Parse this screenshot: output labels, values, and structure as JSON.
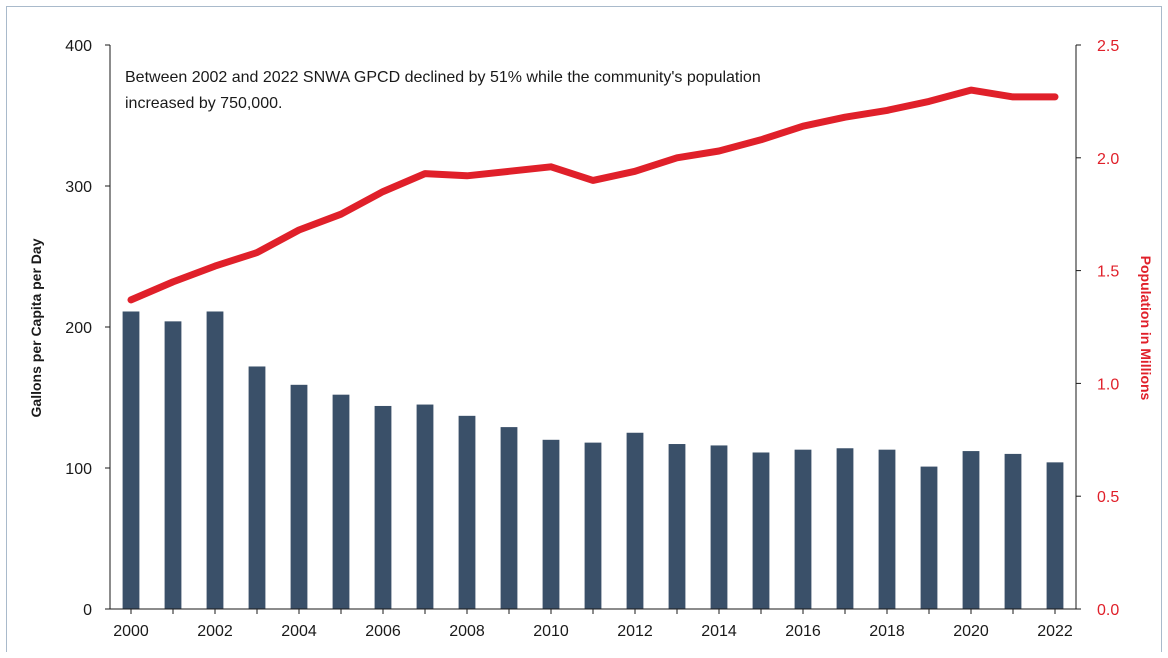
{
  "chart_data": {
    "type": "bar+line",
    "annotation": [
      "Between 2002 and 2022 SNWA GPCD declined by 51% while the community's population",
      "increased by 750,000."
    ],
    "ylabel_left": "Gallons per Capita per Day",
    "ylabel_right": "Population in Millions",
    "ylim_left": [
      0,
      400
    ],
    "ylim_right": [
      0,
      2.5
    ],
    "left_ticks": [
      "0",
      "100",
      "200",
      "300",
      "400"
    ],
    "right_ticks": [
      "0.0",
      "0.5",
      "1.0",
      "1.5",
      "2.0",
      "2.5"
    ],
    "x_tick_labels": [
      "2000",
      "2002",
      "2004",
      "2006",
      "2008",
      "2010",
      "2012",
      "2014",
      "2016",
      "2018",
      "2020",
      "2022"
    ],
    "years": [
      2000,
      2001,
      2002,
      2003,
      2004,
      2005,
      2006,
      2007,
      2008,
      2009,
      2010,
      2011,
      2012,
      2013,
      2014,
      2015,
      2016,
      2017,
      2018,
      2019,
      2020,
      2021,
      2022
    ],
    "series": [
      {
        "axis": "left",
        "kind": "bar",
        "color": "#3a5069",
        "values": [
          211,
          204,
          211,
          172,
          159,
          152,
          144,
          145,
          137,
          129,
          120,
          118,
          125,
          117,
          116,
          111,
          113,
          114,
          113,
          101,
          112,
          110,
          104
        ]
      },
      {
        "axis": "right",
        "kind": "line",
        "color": "#e0202a",
        "values": [
          1.37,
          1.45,
          1.52,
          1.58,
          1.68,
          1.75,
          1.85,
          1.93,
          1.92,
          1.94,
          1.96,
          1.9,
          1.94,
          2.0,
          2.03,
          2.08,
          2.14,
          2.18,
          2.21,
          2.25,
          2.3,
          2.27,
          2.27
        ]
      }
    ],
    "grid": false,
    "colors": {
      "right_axis": "#e0202a",
      "axes": "#1a1a1a"
    }
  }
}
